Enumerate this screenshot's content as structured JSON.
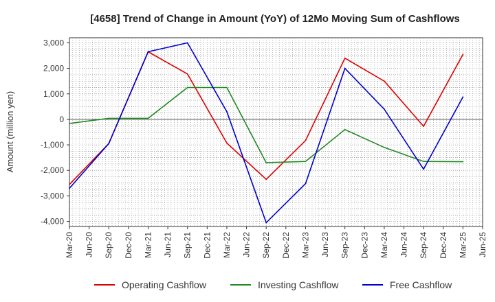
{
  "chart_data": {
    "type": "line",
    "title": "[4658]  Trend of Change in Amount (YoY) of 12Mo Moving Sum of Cashflows",
    "xlabel": "",
    "ylabel": "Amount (million yen)",
    "ylim": [
      -4200,
      3200
    ],
    "yticks": [
      3000,
      2000,
      1000,
      0,
      -1000,
      -2000,
      -3000,
      -4000
    ],
    "ytick_labels": [
      "3,000",
      "2,000",
      "1,000",
      "0",
      "-1,000",
      "-2,000",
      "-3,000",
      "-4,000"
    ],
    "categories": [
      "Mar-20",
      "Jun-20",
      "Sep-20",
      "Dec-20",
      "Mar-21",
      "Jun-21",
      "Sep-21",
      "Dec-21",
      "Mar-22",
      "Jun-22",
      "Sep-22",
      "Dec-22",
      "Mar-23",
      "Jun-23",
      "Sep-23",
      "Dec-23",
      "Mar-24",
      "Jun-24",
      "Sep-24",
      "Dec-24",
      "Mar-25",
      "Jun-25"
    ],
    "series": [
      {
        "name": "Operating Cashflow",
        "color": "#dd0000",
        "points": [
          [
            0,
            -2550
          ],
          [
            2,
            -950
          ],
          [
            4,
            2650
          ],
          [
            6,
            1780
          ],
          [
            8,
            -930
          ],
          [
            10,
            -2350
          ],
          [
            12,
            -830
          ],
          [
            14,
            2400
          ],
          [
            16,
            1500
          ],
          [
            18,
            -270
          ],
          [
            20,
            2550
          ]
        ]
      },
      {
        "name": "Investing Cashflow",
        "color": "#228822",
        "points": [
          [
            0,
            -160
          ],
          [
            2,
            40
          ],
          [
            4,
            40
          ],
          [
            6,
            1250
          ],
          [
            8,
            1250
          ],
          [
            10,
            -1700
          ],
          [
            12,
            -1650
          ],
          [
            14,
            -400
          ],
          [
            16,
            -1100
          ],
          [
            18,
            -1650
          ],
          [
            20,
            -1660
          ]
        ]
      },
      {
        "name": "Free Cashflow",
        "color": "#0000cc",
        "points": [
          [
            0,
            -2700
          ],
          [
            2,
            -950
          ],
          [
            4,
            2650
          ],
          [
            6,
            3000
          ],
          [
            8,
            300
          ],
          [
            10,
            -4050
          ],
          [
            12,
            -2520
          ],
          [
            14,
            2000
          ],
          [
            16,
            400
          ],
          [
            18,
            -1950
          ],
          [
            20,
            880
          ]
        ]
      }
    ],
    "grid": true,
    "legend_position": "bottom"
  }
}
